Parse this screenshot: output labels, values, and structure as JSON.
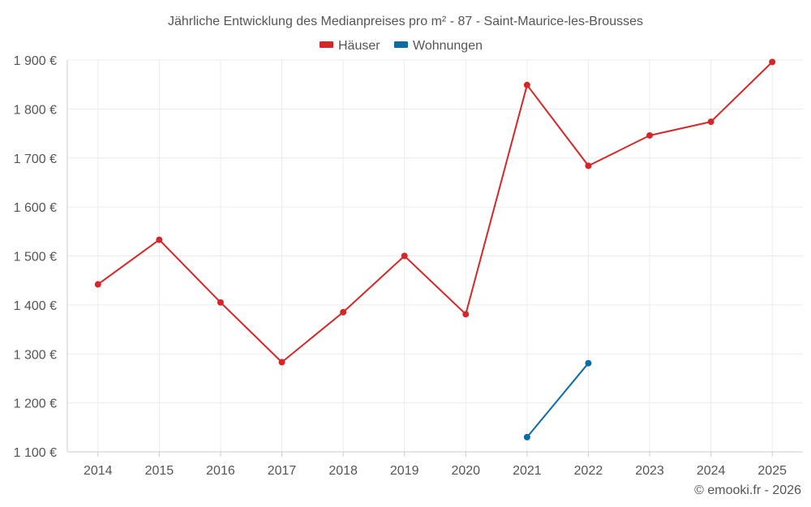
{
  "chart_data": {
    "type": "line",
    "title": "Jährliche Entwicklung des Medianpreises pro m² - 87 - Saint-Maurice-les-Brousses",
    "xlabel": "",
    "ylabel": "",
    "categories": [
      "2014",
      "2015",
      "2016",
      "2017",
      "2018",
      "2019",
      "2020",
      "2021",
      "2022",
      "2023",
      "2024",
      "2025"
    ],
    "ylim": [
      1100,
      1900
    ],
    "yticks": [
      1100,
      1200,
      1300,
      1400,
      1500,
      1600,
      1700,
      1800,
      1900
    ],
    "ytick_labels": [
      "1 100 €",
      "1 200 €",
      "1 300 €",
      "1 400 €",
      "1 500 €",
      "1 600 €",
      "1 700 €",
      "1 800 €",
      "1 900 €"
    ],
    "grid": true,
    "legend_position": "top-center",
    "series": [
      {
        "name": "Häuser",
        "color": "#d62728",
        "values": [
          1442,
          1533,
          1405,
          1283,
          1385,
          1500,
          1381,
          1849,
          1684,
          1746,
          1774,
          1896
        ]
      },
      {
        "name": "Wohnungen",
        "color": "#0e6aa3",
        "values": [
          null,
          null,
          null,
          null,
          null,
          null,
          null,
          1130,
          1281,
          null,
          null,
          null
        ]
      }
    ],
    "credit": "© emooki.fr - 2026"
  }
}
